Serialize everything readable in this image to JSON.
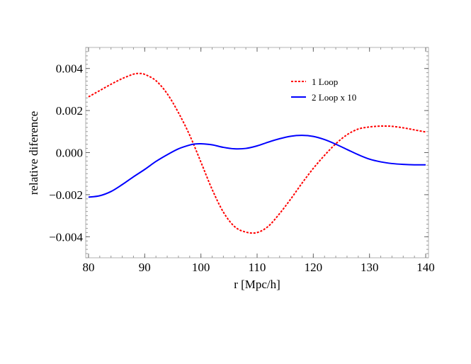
{
  "chart_data": {
    "type": "line",
    "title": "",
    "xlabel": "r [Mpc/h]",
    "ylabel": "relative diference",
    "xlim": [
      79.5,
      140.5
    ],
    "ylim": [
      -0.005,
      0.005
    ],
    "grid": false,
    "legend_position": "top-right",
    "x_ticks": [
      80,
      90,
      100,
      110,
      120,
      130,
      140
    ],
    "x_tick_labels": [
      "80",
      "90",
      "100",
      "110",
      "120",
      "130",
      "140"
    ],
    "y_ticks": [
      0.004,
      0.002,
      0.0,
      -0.002,
      -0.004
    ],
    "y_tick_labels": [
      "0.004",
      "0.002",
      "0.000",
      "−0.002",
      "−0.004"
    ],
    "series": [
      {
        "name": "1 Loop",
        "color": "#ff0000",
        "style": "dashed",
        "x": [
          80,
          82,
          84,
          86,
          88,
          89,
          90,
          92,
          94,
          96,
          98,
          100,
          102,
          104,
          106,
          108,
          110,
          112,
          114,
          116,
          118,
          120,
          122,
          124,
          126,
          128,
          130,
          132,
          133,
          134,
          136,
          138,
          140
        ],
        "y": [
          0.00265,
          0.00295,
          0.00325,
          0.00352,
          0.00373,
          0.00376,
          0.00372,
          0.00342,
          0.0028,
          0.0019,
          0.00083,
          -0.00045,
          -0.00175,
          -0.00283,
          -0.00352,
          -0.00378,
          -0.0038,
          -0.0035,
          -0.0029,
          -0.0022,
          -0.00145,
          -0.00075,
          -0.00013,
          0.00042,
          0.00085,
          0.00112,
          0.00122,
          0.00126,
          0.00126,
          0.00125,
          0.00118,
          0.00108,
          0.00098
        ]
      },
      {
        "name": "2 Loop x 10",
        "color": "#0000ff",
        "style": "solid",
        "x": [
          80,
          82,
          84,
          86,
          88,
          90,
          92,
          94,
          96,
          98,
          99,
          100,
          102,
          104,
          106,
          108,
          110,
          112,
          114,
          116,
          118,
          120,
          122,
          124,
          126,
          128,
          130,
          132,
          134,
          136,
          138,
          140
        ],
        "y": [
          -0.00212,
          -0.00205,
          -0.00185,
          -0.00152,
          -0.00115,
          -0.0008,
          -0.00042,
          -0.0001,
          0.00018,
          0.00036,
          0.00041,
          0.00042,
          0.00037,
          0.00025,
          0.00018,
          0.0002,
          0.00032,
          0.0005,
          0.00066,
          0.00078,
          0.00082,
          0.00077,
          0.00062,
          0.0004,
          0.00015,
          -0.0001,
          -0.00031,
          -0.00044,
          -0.00052,
          -0.00056,
          -0.00058,
          -0.00058
        ]
      }
    ]
  }
}
